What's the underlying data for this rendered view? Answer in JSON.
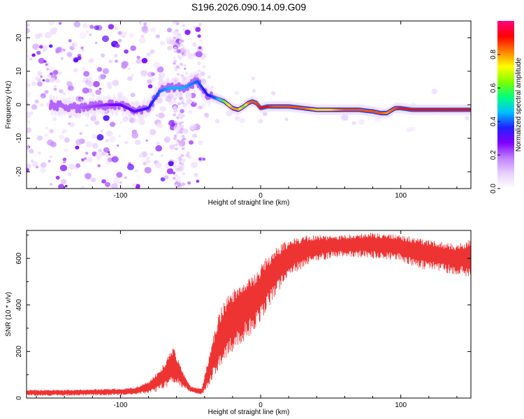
{
  "title": "S196.2026.090.14.09.G09",
  "chart_data": [
    {
      "type": "heatmap",
      "name": "spectrogram",
      "xlabel": "Height of straight line (km)",
      "ylabel": "Frequency (Hz)",
      "xlim": [
        -167,
        150
      ],
      "ylim": [
        -25,
        25
      ],
      "xticks": [
        -100,
        0,
        100
      ],
      "yticks": [
        -20,
        -10,
        0,
        10,
        20
      ],
      "colorbar": {
        "label": "Normalized spectral amplitude",
        "range": [
          0,
          1
        ],
        "ticks": [
          0.0,
          0.2,
          0.4,
          0.6,
          0.8
        ],
        "colors": [
          "#ffffff",
          "#e8d0ff",
          "#c080ff",
          "#8000ff",
          "#2020ff",
          "#00c0ff",
          "#00ff80",
          "#80ff00",
          "#ffff00",
          "#ff8000",
          "#ff0000",
          "#ff0080"
        ]
      },
      "ridge": {
        "x": [
          -150,
          -130,
          -110,
          -100,
          -90,
          -80,
          -72,
          -65,
          -55,
          -45,
          -38,
          -32,
          -26,
          -20,
          -16,
          -12,
          -9,
          -6,
          -3,
          0,
          5,
          10,
          20,
          30,
          40,
          50,
          60,
          70,
          80,
          86,
          90,
          96,
          100,
          108,
          120,
          135,
          150
        ],
        "y": [
          0,
          -1,
          0,
          0,
          -2,
          -1,
          4,
          5,
          5,
          7,
          3,
          2,
          1,
          -1,
          -1.5,
          -0.5,
          0.5,
          1,
          0.5,
          -1,
          -0.5,
          -0.5,
          -0.5,
          -1,
          -1.5,
          -1.5,
          -1.5,
          -1.5,
          -2,
          -2.5,
          -2.5,
          -1,
          -1,
          -1.5,
          -1.5,
          -1.5,
          -1.5
        ],
        "amplitude": [
          0.2,
          0.2,
          0.25,
          0.3,
          0.3,
          0.35,
          0.4,
          0.45,
          0.45,
          0.4,
          0.35,
          0.4,
          0.6,
          0.8,
          0.8,
          0.6,
          0.8,
          0.85,
          0.85,
          0.9,
          0.9,
          0.85,
          0.85,
          0.85,
          0.75,
          0.75,
          0.85,
          0.85,
          0.85,
          0.85,
          0.8,
          0.85,
          0.9,
          0.9,
          0.9,
          0.9,
          0.9
        ]
      }
    },
    {
      "type": "line",
      "name": "snr",
      "xlabel": "Height of straight line (km)",
      "ylabel": "SNR (10 * v/v)",
      "xlim": [
        -167,
        150
      ],
      "ylim": [
        0,
        720
      ],
      "xticks": [
        -100,
        0,
        100
      ],
      "yticks": [
        0,
        200,
        400,
        600
      ],
      "color": "#ee3333",
      "envelope": {
        "x": [
          -167,
          -140,
          -120,
          -100,
          -90,
          -80,
          -72,
          -68,
          -62,
          -56,
          -50,
          -42,
          -38,
          -34,
          -30,
          -26,
          -20,
          -15,
          -10,
          -5,
          0,
          5,
          10,
          15,
          20,
          30,
          40,
          50,
          60,
          80,
          100,
          110,
          120,
          130,
          140,
          150
        ],
        "low": [
          10,
          10,
          12,
          12,
          15,
          22,
          30,
          45,
          60,
          45,
          25,
          15,
          40,
          80,
          120,
          160,
          200,
          230,
          260,
          280,
          330,
          380,
          430,
          480,
          520,
          560,
          590,
          600,
          610,
          600,
          590,
          560,
          550,
          540,
          530,
          520
        ],
        "high": [
          35,
          35,
          38,
          40,
          45,
          70,
          120,
          160,
          220,
          120,
          50,
          40,
          150,
          260,
          360,
          420,
          460,
          490,
          510,
          530,
          570,
          610,
          640,
          660,
          680,
          700,
          700,
          700,
          700,
          710,
          700,
          690,
          680,
          670,
          660,
          680
        ]
      }
    }
  ]
}
